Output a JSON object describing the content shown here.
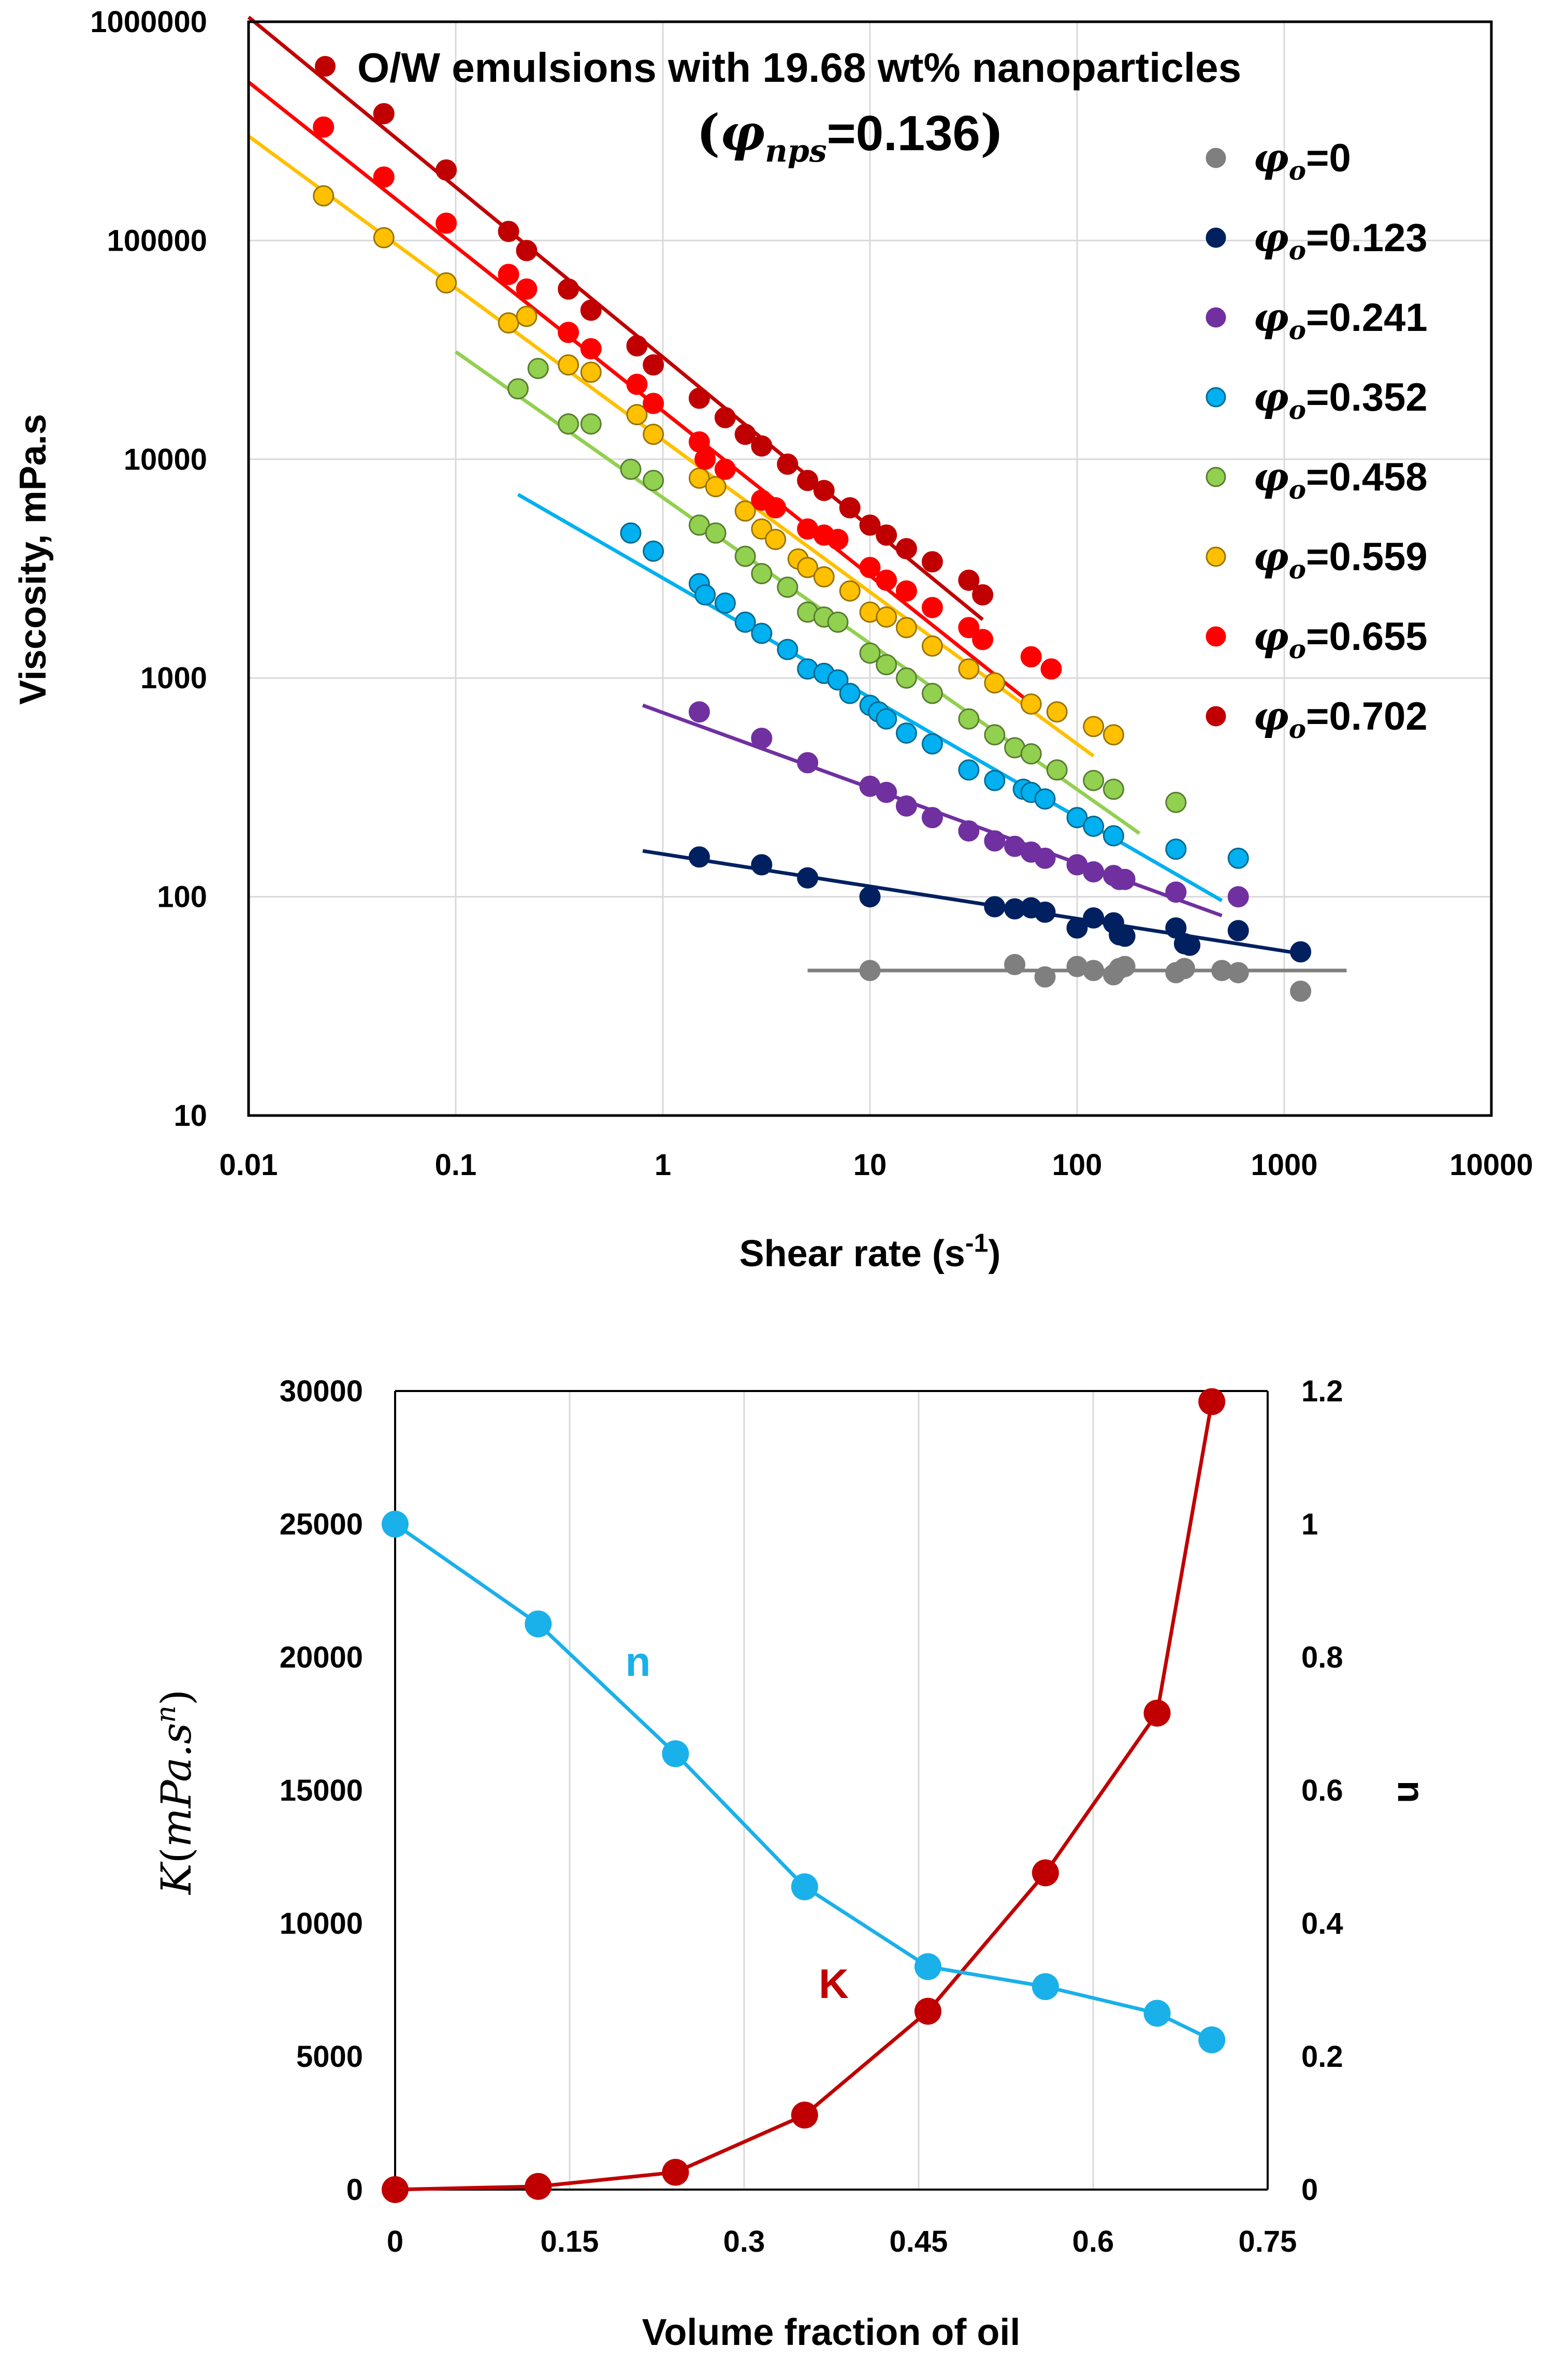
{
  "chart_data": [
    {
      "type": "scatter",
      "scale": "log-log",
      "title": "O/W emulsions with 19.68 wt% nanoparticles",
      "subtitle": {
        "symbol": "φ",
        "subscript": "nps",
        "value": "=0.136"
      },
      "xlabel": "Shear rate (s",
      "xlabel_sup": "-1",
      "xlabel_close": ")",
      "ylabel": "Viscosity, mPa.s",
      "xlim": [
        0.01,
        10000
      ],
      "ylim": [
        10,
        1000000
      ],
      "xticks": [
        "0.01",
        "0.1",
        "1",
        "10",
        "100",
        "1000",
        "10000"
      ],
      "yticks": [
        "10",
        "100",
        "1000",
        "10000",
        "100000",
        "1000000"
      ],
      "legend_position": "top-right",
      "series": [
        {
          "name": "φo=0",
          "label_prefix": "φ",
          "label_sub": "o",
          "label_value": "=0",
          "color": "#7f7f7f",
          "points": [
            [
              10,
              46
            ],
            [
              50,
              49
            ],
            [
              70,
              43
            ],
            [
              100,
              48
            ],
            [
              120,
              46
            ],
            [
              150,
              44
            ],
            [
              160,
              47
            ],
            [
              170,
              48
            ],
            [
              300,
              45
            ],
            [
              330,
              47
            ],
            [
              500,
              46
            ],
            [
              600,
              45
            ],
            [
              1200,
              37
            ]
          ],
          "fit": {
            "x": [
              5,
              2000
            ],
            "y": [
              46,
              46
            ]
          }
        },
        {
          "name": "φo=0.123",
          "label_prefix": "φ",
          "label_sub": "o",
          "label_value": "=0.123",
          "color": "#002060",
          "points": [
            [
              1.5,
              152
            ],
            [
              3,
              140
            ],
            [
              5,
              122
            ],
            [
              10,
              100
            ],
            [
              40,
              90
            ],
            [
              50,
              88
            ],
            [
              60,
              89
            ],
            [
              70,
              85
            ],
            [
              100,
              72
            ],
            [
              120,
              80
            ],
            [
              150,
              76
            ],
            [
              160,
              67
            ],
            [
              170,
              66
            ],
            [
              300,
              72
            ],
            [
              330,
              61
            ],
            [
              350,
              60
            ],
            [
              600,
              70
            ],
            [
              1200,
              56
            ]
          ],
          "fit": {
            "x": [
              0.8,
              1200
            ],
            "y": [
              162,
              55
            ]
          }
        },
        {
          "name": "φo=0.241",
          "label_prefix": "φ",
          "label_sub": "o",
          "label_value": "=0.241",
          "color": "#7030a0",
          "points": [
            [
              1.5,
              700
            ],
            [
              3,
              530
            ],
            [
              5,
              410
            ],
            [
              10,
              320
            ],
            [
              12,
              300
            ],
            [
              15,
              260
            ],
            [
              20,
              230
            ],
            [
              30,
              200
            ],
            [
              40,
              180
            ],
            [
              50,
              170
            ],
            [
              60,
              160
            ],
            [
              70,
              150
            ],
            [
              100,
              140
            ],
            [
              120,
              130
            ],
            [
              150,
              125
            ],
            [
              160,
              120
            ],
            [
              170,
              120
            ],
            [
              300,
              105
            ],
            [
              600,
              100
            ]
          ],
          "fit": {
            "x": [
              0.8,
              500
            ],
            "y": [
              750,
              82
            ]
          }
        },
        {
          "name": "φo=0.352",
          "label_prefix": "φ",
          "label_sub": "o",
          "label_value": "=0.352",
          "color": "#00b0f0",
          "points": [
            [
              0.7,
              4600
            ],
            [
              0.9,
              3800
            ],
            [
              1.5,
              2700
            ],
            [
              1.6,
              2400
            ],
            [
              2,
              2200
            ],
            [
              2.5,
              1800
            ],
            [
              3,
              1600
            ],
            [
              4,
              1350
            ],
            [
              5,
              1100
            ],
            [
              6,
              1050
            ],
            [
              7,
              980
            ],
            [
              8,
              850
            ],
            [
              10,
              750
            ],
            [
              11,
              700
            ],
            [
              12,
              650
            ],
            [
              15,
              560
            ],
            [
              20,
              500
            ],
            [
              30,
              380
            ],
            [
              40,
              340
            ],
            [
              55,
              310
            ],
            [
              60,
              300
            ],
            [
              70,
              280
            ],
            [
              100,
              230
            ],
            [
              120,
              210
            ],
            [
              150,
              190
            ],
            [
              300,
              165
            ],
            [
              600,
              150
            ]
          ],
          "fit": {
            "x": [
              0.2,
              500
            ],
            "y": [
              6900,
              96
            ]
          }
        },
        {
          "name": "φo=0.458",
          "label_prefix": "φ",
          "label_sub": "o",
          "label_value": "=0.458",
          "color": "#92d050",
          "points": [
            [
              0.2,
              21000
            ],
            [
              0.25,
              26000
            ],
            [
              0.35,
              14500
            ],
            [
              0.45,
              14500
            ],
            [
              0.7,
              9000
            ],
            [
              0.9,
              8000
            ],
            [
              1.5,
              5000
            ],
            [
              1.8,
              4600
            ],
            [
              2.5,
              3600
            ],
            [
              3,
              3000
            ],
            [
              4,
              2600
            ],
            [
              5,
              2000
            ],
            [
              6,
              1900
            ],
            [
              7,
              1800
            ],
            [
              10,
              1300
            ],
            [
              12,
              1150
            ],
            [
              15,
              1000
            ],
            [
              20,
              850
            ],
            [
              30,
              650
            ],
            [
              40,
              550
            ],
            [
              50,
              480
            ],
            [
              60,
              450
            ],
            [
              80,
              380
            ],
            [
              120,
              340
            ],
            [
              150,
              310
            ],
            [
              300,
              270
            ]
          ],
          "fit": {
            "x": [
              0.1,
              200
            ],
            "y": [
              31000,
              195
            ]
          }
        },
        {
          "name": "φo=0.559",
          "label_prefix": "φ",
          "label_sub": "o",
          "label_value": "=0.559",
          "color": "#ffc000",
          "points": [
            [
              0.023,
              160000
            ],
            [
              0.045,
              103000
            ],
            [
              0.09,
              64000
            ],
            [
              0.18,
              42000
            ],
            [
              0.22,
              45000
            ],
            [
              0.35,
              27000
            ],
            [
              0.45,
              25000
            ],
            [
              0.75,
              16000
            ],
            [
              0.9,
              13000
            ],
            [
              1.5,
              8200
            ],
            [
              1.8,
              7500
            ],
            [
              2.5,
              5800
            ],
            [
              3,
              4800
            ],
            [
              3.5,
              4300
            ],
            [
              4.5,
              3500
            ],
            [
              5,
              3200
            ],
            [
              6,
              2900
            ],
            [
              8,
              2500
            ],
            [
              10,
              2000
            ],
            [
              12,
              1900
            ],
            [
              15,
              1700
            ],
            [
              20,
              1400
            ],
            [
              30,
              1100
            ],
            [
              40,
              950
            ],
            [
              60,
              760
            ],
            [
              80,
              700
            ],
            [
              120,
              600
            ],
            [
              150,
              550
            ]
          ],
          "fit": {
            "x": [
              0.01,
              120
            ],
            "y": [
              300000,
              440
            ]
          }
        },
        {
          "name": "φo=0.655",
          "label_prefix": "φ",
          "label_sub": "o",
          "label_value": "=0.655",
          "color": "#ff0000",
          "points": [
            [
              0.023,
              330000
            ],
            [
              0.045,
              195000
            ],
            [
              0.09,
              120000
            ],
            [
              0.18,
              70000
            ],
            [
              0.22,
              60000
            ],
            [
              0.35,
              38000
            ],
            [
              0.45,
              32000
            ],
            [
              0.75,
              22000
            ],
            [
              0.9,
              18000
            ],
            [
              1.5,
              12000
            ],
            [
              1.6,
              10000
            ],
            [
              2,
              9000
            ],
            [
              3,
              6500
            ],
            [
              3.5,
              6000
            ],
            [
              5,
              4800
            ],
            [
              6,
              4500
            ],
            [
              7,
              4300
            ],
            [
              10,
              3200
            ],
            [
              12,
              2800
            ],
            [
              15,
              2500
            ],
            [
              20,
              2100
            ],
            [
              30,
              1700
            ],
            [
              35,
              1500
            ],
            [
              60,
              1250
            ],
            [
              75,
              1100
            ]
          ],
          "fit": {
            "x": [
              0.01,
              65
            ],
            "y": [
              530000,
              720
            ]
          }
        },
        {
          "name": "φo=0.702",
          "label_prefix": "φ",
          "label_sub": "o",
          "label_value": "=0.702",
          "color": "#c00000",
          "points": [
            [
              0.045,
              380000
            ],
            [
              0.09,
              210000
            ],
            [
              0.18,
              110000
            ],
            [
              0.22,
              90000
            ],
            [
              0.35,
              60000
            ],
            [
              0.45,
              48000
            ],
            [
              0.75,
              33000
            ],
            [
              0.9,
              27000
            ],
            [
              1.5,
              19000
            ],
            [
              2,
              15500
            ],
            [
              2.5,
              13000
            ],
            [
              3,
              11500
            ],
            [
              4,
              9500
            ],
            [
              5,
              8000
            ],
            [
              6,
              7200
            ],
            [
              8,
              6000
            ],
            [
              10,
              5000
            ],
            [
              12,
              4500
            ],
            [
              15,
              3900
            ],
            [
              20,
              3400
            ],
            [
              30,
              2800
            ],
            [
              35,
              2400
            ]
          ],
          "fit": {
            "x": [
              0.01,
              35
            ],
            "y": [
              1050000,
              1850
            ]
          }
        }
      ]
    },
    {
      "type": "line",
      "xlabel": "Volume fraction of oil",
      "ylabel_left": {
        "symbol": "K",
        "open": "(",
        "units": "mPa.s",
        "sup": "n",
        "close": ")"
      },
      "ylabel_right": "n",
      "xlim": [
        0,
        0.75
      ],
      "ylim_left": [
        0,
        30000
      ],
      "ylim_right": [
        0,
        1.2
      ],
      "xticks": [
        "0",
        "0.15",
        "0.3",
        "0.45",
        "0.6",
        "0.75"
      ],
      "yticks_left": [
        "0",
        "5000",
        "10000",
        "15000",
        "20000",
        "25000",
        "30000"
      ],
      "yticks_right": [
        "0",
        "0.2",
        "0.4",
        "0.6",
        "0.8",
        "1",
        "1.2"
      ],
      "series": [
        {
          "name": "K",
          "axis": "left",
          "color": "#c00000",
          "x": [
            0,
            0.123,
            0.241,
            0.352,
            0.458,
            0.559,
            0.655,
            0.702
          ],
          "values": [
            0,
            120,
            650,
            2800,
            6700,
            11900,
            17900,
            29600
          ],
          "label": "K"
        },
        {
          "name": "n",
          "axis": "right",
          "color": "#1ab0ea",
          "x": [
            0,
            0.123,
            0.241,
            0.352,
            0.458,
            0.559,
            0.655,
            0.702
          ],
          "values": [
            1.0,
            0.85,
            0.655,
            0.455,
            0.335,
            0.305,
            0.265,
            0.225
          ],
          "label": "n"
        }
      ]
    }
  ]
}
